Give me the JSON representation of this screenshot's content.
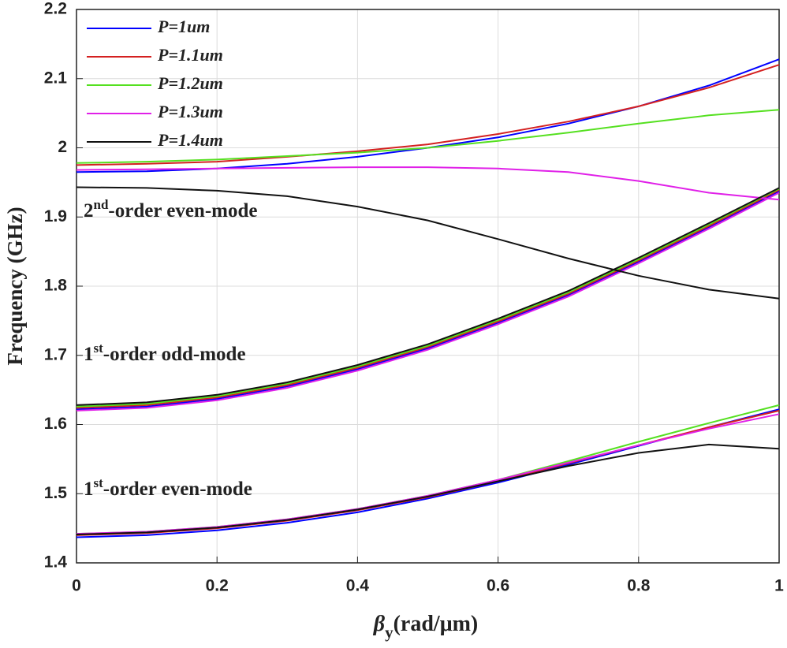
{
  "chart_data": {
    "type": "line",
    "ylabel": "Frequency (GHz)",
    "xlabel": {
      "symbol": "β",
      "sub": "y",
      "unit": "(rad/μm)"
    },
    "x": [
      0,
      0.1,
      0.2,
      0.3,
      0.4,
      0.5,
      0.6,
      0.7,
      0.8,
      0.9,
      1
    ],
    "xlim": [
      0,
      1
    ],
    "xticks": [
      0,
      0.2,
      0.4,
      0.6,
      0.8,
      1
    ],
    "ylim": [
      1.4,
      2.2
    ],
    "yticks": [
      1.4,
      1.5,
      1.6,
      1.7,
      1.8,
      1.9,
      2,
      2.1,
      2.2
    ],
    "grid": true,
    "legend": "upper-left",
    "annotations": [
      {
        "number": "2",
        "sup": "nd",
        "text": "-order even-mode"
      },
      {
        "number": "1",
        "sup": "st",
        "text": "-order odd-mode"
      },
      {
        "number": "1",
        "sup": "st",
        "text": "-order even-mode"
      }
    ],
    "series": [
      {
        "name": "P=1um",
        "color": "#0000ff",
        "values": [
          [
            1.437,
            1.44,
            1.447,
            1.458,
            1.473,
            1.493,
            1.516,
            1.542,
            1.569,
            1.596,
            1.622
          ],
          [
            1.622,
            1.626,
            1.637,
            1.655,
            1.68,
            1.71,
            1.747,
            1.787,
            1.835,
            1.885,
            1.937
          ],
          [
            1.965,
            1.966,
            1.97,
            1.977,
            1.987,
            2.0,
            2.015,
            2.035,
            2.06,
            2.09,
            2.128
          ]
        ]
      },
      {
        "name": "P=1.1um",
        "color": "#d42020",
        "values": [
          [
            1.44,
            1.443,
            1.45,
            1.461,
            1.476,
            1.495,
            1.518,
            1.544,
            1.57,
            1.596,
            1.62
          ],
          [
            1.624,
            1.628,
            1.639,
            1.657,
            1.682,
            1.712,
            1.749,
            1.789,
            1.837,
            1.887,
            1.939
          ],
          [
            1.975,
            1.977,
            1.98,
            1.987,
            1.995,
            2.005,
            2.02,
            2.038,
            2.06,
            2.087,
            2.12
          ]
        ]
      },
      {
        "name": "P=1.2um",
        "color": "#55e020",
        "values": [
          [
            1.442,
            1.445,
            1.452,
            1.463,
            1.478,
            1.497,
            1.52,
            1.547,
            1.575,
            1.602,
            1.628
          ],
          [
            1.626,
            1.63,
            1.641,
            1.659,
            1.684,
            1.714,
            1.751,
            1.791,
            1.839,
            1.889,
            1.941
          ],
          [
            1.978,
            1.98,
            1.983,
            1.988,
            1.993,
            2.0,
            2.01,
            2.022,
            2.035,
            2.047,
            2.055
          ]
        ]
      },
      {
        "name": "P=1.3um",
        "color": "#e020e8",
        "values": [
          [
            1.442,
            1.445,
            1.452,
            1.463,
            1.478,
            1.497,
            1.52,
            1.545,
            1.57,
            1.594,
            1.615
          ],
          [
            1.62,
            1.624,
            1.635,
            1.653,
            1.678,
            1.708,
            1.745,
            1.785,
            1.833,
            1.883,
            1.935
          ],
          [
            1.968,
            1.969,
            1.97,
            1.971,
            1.972,
            1.972,
            1.97,
            1.965,
            1.952,
            1.935,
            1.925
          ]
        ]
      },
      {
        "name": "P=1.4um",
        "color": "#111111",
        "values": [
          [
            1.441,
            1.444,
            1.451,
            1.462,
            1.477,
            1.496,
            1.518,
            1.54,
            1.559,
            1.571,
            1.565
          ],
          [
            1.628,
            1.632,
            1.643,
            1.661,
            1.686,
            1.716,
            1.753,
            1.793,
            1.841,
            1.891,
            1.942
          ],
          [
            1.943,
            1.942,
            1.938,
            1.93,
            1.915,
            1.895,
            1.868,
            1.84,
            1.815,
            1.795,
            1.782
          ]
        ]
      }
    ]
  }
}
